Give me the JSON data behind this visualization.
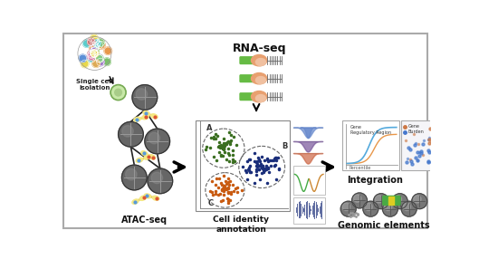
{
  "bg_color": "#ffffff",
  "border_color": "#888888",
  "fig_width": 5.29,
  "fig_height": 2.86,
  "dpi": 100,
  "labels": {
    "single_cell": "Single cell\nisolation",
    "atac_seq": "ATAC-seq",
    "rna_seq": "RNA-seq",
    "cell_identity": "Cell identity\nannotation",
    "integration": "Integration",
    "genomic": "Genomic elements",
    "cluster_a": "A",
    "cluster_b": "B",
    "cluster_c": "C"
  },
  "colors": {
    "green_cluster": "#3a6e20",
    "blue_cluster": "#1a2e7a",
    "orange_cluster": "#c85a10",
    "cell_colors": [
      "#5b8fd6",
      "#e8974a",
      "#7bbf6a",
      "#d66b9e",
      "#a47bcd",
      "#e8d84a",
      "#5bcccc",
      "#cc5b5b",
      "#88aacc",
      "#ccaa55"
    ],
    "atac_gray": "#555555",
    "atac_light": "#999999",
    "transposase_fill": "#f5e882",
    "transposase_edge": "#ccaa22",
    "rna_green": "#66bb44",
    "rna_orange": "#e8974a",
    "rna_pink": "#e8887a",
    "arrow_black": "#111111",
    "integration_orange": "#e8974a",
    "integration_blue": "#55aadd",
    "genomic_gray": "#777777",
    "genomic_dark": "#444444",
    "genomic_green": "#4aaa44",
    "genomic_yellow": "#ddcc22",
    "scatter_orange": "#cc7744",
    "scatter_blue": "#4477cc"
  }
}
